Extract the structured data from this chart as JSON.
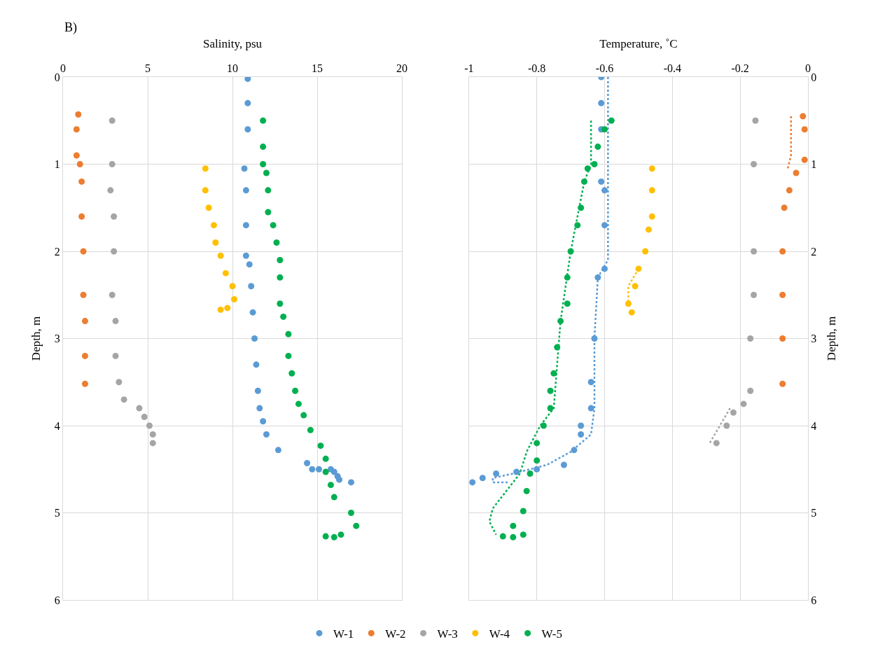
{
  "chart_data": [
    {
      "type": "scatter",
      "xlabel": "Salinity, psu",
      "ylabel": "Depth, m",
      "annotations": [
        "B)"
      ],
      "xlim": [
        0,
        20
      ],
      "xticks": [
        0,
        5,
        10,
        15,
        20
      ],
      "ylim": [
        6,
        0
      ],
      "yticks": [
        0,
        1,
        2,
        3,
        4,
        5,
        6
      ],
      "grid": true,
      "legend": "bottom",
      "marker": "circle",
      "series": [
        {
          "name": "W-1",
          "color": "#5b9bd5",
          "x": [
            10.9,
            10.9,
            10.9,
            10.7,
            10.8,
            10.8,
            10.8,
            11.0,
            11.1,
            11.2,
            11.3,
            11.4,
            11.5,
            11.6,
            11.8,
            12.0,
            12.7,
            14.4,
            14.7,
            15.1,
            15.8,
            16.0,
            16.2,
            16.3,
            17.0
          ],
          "values": [
            0.02,
            0.3,
            0.6,
            1.05,
            1.3,
            1.7,
            2.05,
            2.15,
            2.4,
            2.7,
            3.0,
            3.3,
            3.6,
            3.8,
            3.95,
            4.1,
            4.28,
            4.43,
            4.5,
            4.5,
            4.5,
            4.53,
            4.58,
            4.62,
            4.65
          ]
        },
        {
          "name": "W-2",
          "color": "#ed7d31",
          "x": [
            0.9,
            0.8,
            0.8,
            1.0,
            1.1,
            1.1,
            1.2,
            1.2,
            1.3,
            1.3,
            1.3
          ],
          "values": [
            0.43,
            0.6,
            0.9,
            1.0,
            1.2,
            1.6,
            2.0,
            2.5,
            2.8,
            3.2,
            3.52
          ]
        },
        {
          "name": "W-3",
          "color": "#a5a5a5",
          "x": [
            2.9,
            2.9,
            2.8,
            3.0,
            3.0,
            2.9,
            3.1,
            3.1,
            3.3,
            3.6,
            4.5,
            4.8,
            5.1,
            5.3,
            5.3
          ],
          "values": [
            0.5,
            1.0,
            1.3,
            1.6,
            2.0,
            2.5,
            2.8,
            3.2,
            3.5,
            3.7,
            3.8,
            3.9,
            4.0,
            4.1,
            4.2
          ]
        },
        {
          "name": "W-4",
          "color": "#ffc000",
          "x": [
            8.4,
            8.4,
            8.6,
            8.9,
            9.0,
            9.3,
            9.6,
            10.0,
            10.1,
            9.7,
            9.3
          ],
          "values": [
            1.05,
            1.3,
            1.5,
            1.7,
            1.9,
            2.05,
            2.25,
            2.4,
            2.55,
            2.65,
            2.67
          ]
        },
        {
          "name": "W-5",
          "color": "#00b050",
          "x": [
            11.8,
            11.8,
            11.8,
            12.0,
            12.1,
            12.1,
            12.4,
            12.6,
            12.8,
            12.8,
            12.8,
            13.0,
            13.3,
            13.3,
            13.5,
            13.7,
            13.9,
            14.2,
            14.6,
            15.2,
            15.5,
            15.5,
            15.8,
            16.0,
            17.0,
            17.3,
            16.4,
            15.5,
            16.0
          ],
          "values": [
            0.5,
            0.8,
            1.0,
            1.1,
            1.3,
            1.55,
            1.7,
            1.9,
            2.1,
            2.3,
            2.6,
            2.75,
            2.95,
            3.2,
            3.4,
            3.6,
            3.75,
            3.88,
            4.05,
            4.23,
            4.38,
            4.53,
            4.68,
            4.82,
            5.0,
            5.15,
            5.25,
            5.27,
            5.28
          ]
        }
      ]
    },
    {
      "type": "scatter",
      "xlabel": "Temperature, ˚C",
      "ylabel": "Depth, m",
      "xlim": [
        -1,
        0
      ],
      "xticks": [
        -1,
        -0.8,
        -0.6,
        -0.4,
        -0.2,
        0
      ],
      "ylim": [
        6,
        0
      ],
      "yticks": [
        0,
        1,
        2,
        3,
        4,
        5,
        6
      ],
      "grid": true,
      "legend": "bottom",
      "marker": "circle",
      "series": [
        {
          "name": "W-1",
          "color": "#5b9bd5",
          "x": [
            -0.61,
            -0.61,
            -0.61,
            -0.61,
            -0.6,
            -0.6,
            -0.6,
            -0.62,
            -0.63,
            -0.64,
            -0.64,
            -0.67,
            -0.67,
            -0.69,
            -0.72,
            -0.8,
            -0.86,
            -0.92,
            -0.96,
            -0.99
          ],
          "values": [
            0.0,
            0.3,
            0.6,
            1.2,
            1.3,
            1.7,
            2.2,
            2.3,
            3.0,
            3.5,
            3.8,
            4.0,
            4.1,
            4.28,
            4.45,
            4.5,
            4.53,
            4.55,
            4.6,
            4.65
          ]
        },
        {
          "type": "line",
          "marker": "none",
          "line_style": "dotted",
          "color": "#5b9bd5",
          "x": [
            -0.59,
            -0.59,
            -0.59,
            -0.62,
            -0.63,
            -0.63,
            -0.64,
            -0.7,
            -0.77,
            -0.87,
            -0.93,
            -0.93,
            -0.88
          ],
          "values": [
            0.0,
            1.0,
            2.1,
            2.3,
            3.0,
            3.8,
            4.1,
            4.3,
            4.45,
            4.55,
            4.6,
            4.65,
            4.65
          ]
        },
        {
          "name": "W-2",
          "color": "#ed7d31",
          "x": [
            -0.015,
            -0.01,
            -0.01,
            -0.035,
            -0.055,
            -0.07,
            -0.075,
            -0.075,
            -0.075,
            -0.075
          ],
          "values": [
            0.45,
            0.6,
            0.95,
            1.1,
            1.3,
            1.5,
            2.0,
            2.5,
            3.0,
            3.52
          ]
        },
        {
          "type": "line",
          "marker": "none",
          "line_style": "dotted",
          "color": "#ed7d31",
          "x": [
            -0.05,
            -0.05,
            -0.06
          ],
          "values": [
            0.45,
            0.9,
            1.05
          ]
        },
        {
          "name": "W-3",
          "color": "#a5a5a5",
          "x": [
            -0.155,
            -0.16,
            -0.16,
            -0.16,
            -0.17,
            -0.17,
            -0.19,
            -0.22,
            -0.24,
            -0.27
          ],
          "values": [
            0.5,
            1.0,
            2.0,
            2.5,
            3.0,
            3.6,
            3.75,
            3.85,
            4.0,
            4.2
          ]
        },
        {
          "type": "line",
          "marker": "none",
          "line_style": "dotted",
          "color": "#a5a5a5",
          "x": [
            -0.23,
            -0.29
          ],
          "values": [
            3.8,
            4.2
          ]
        },
        {
          "name": "W-4",
          "color": "#ffc000",
          "x": [
            -0.46,
            -0.46,
            -0.46,
            -0.47,
            -0.48,
            -0.5,
            -0.51,
            -0.53,
            -0.52
          ],
          "values": [
            1.05,
            1.3,
            1.6,
            1.75,
            2.0,
            2.2,
            2.4,
            2.6,
            2.7
          ]
        },
        {
          "type": "line",
          "marker": "none",
          "line_style": "dotted",
          "color": "#ffc000",
          "x": [
            -0.5,
            -0.53,
            -0.53
          ],
          "values": [
            2.2,
            2.4,
            2.65
          ]
        },
        {
          "name": "W-5",
          "color": "#00b050",
          "x": [
            -0.58,
            -0.6,
            -0.62,
            -0.63,
            -0.65,
            -0.66,
            -0.67,
            -0.68,
            -0.7,
            -0.71,
            -0.71,
            -0.73,
            -0.74,
            -0.75,
            -0.76,
            -0.76,
            -0.78,
            -0.8,
            -0.8,
            -0.82,
            -0.83,
            -0.84,
            -0.87,
            -0.84,
            -0.9,
            -0.87
          ],
          "values": [
            0.5,
            0.6,
            0.8,
            1.0,
            1.05,
            1.2,
            1.5,
            1.7,
            2.0,
            2.3,
            2.6,
            2.8,
            3.1,
            3.4,
            3.6,
            3.8,
            4.0,
            4.2,
            4.4,
            4.55,
            4.75,
            4.98,
            5.15,
            5.25,
            5.27,
            5.28
          ]
        },
        {
          "type": "line",
          "marker": "none",
          "line_style": "dotted",
          "color": "#00b050",
          "x": [
            -0.64,
            -0.64,
            -0.66,
            -0.7,
            -0.73,
            -0.75,
            -0.79,
            -0.83,
            -0.85,
            -0.89,
            -0.93,
            -0.94,
            -0.92
          ],
          "values": [
            0.5,
            1.0,
            1.2,
            2.0,
            2.8,
            3.8,
            4.0,
            4.3,
            4.55,
            4.75,
            4.95,
            5.1,
            5.25
          ]
        }
      ]
    }
  ]
}
